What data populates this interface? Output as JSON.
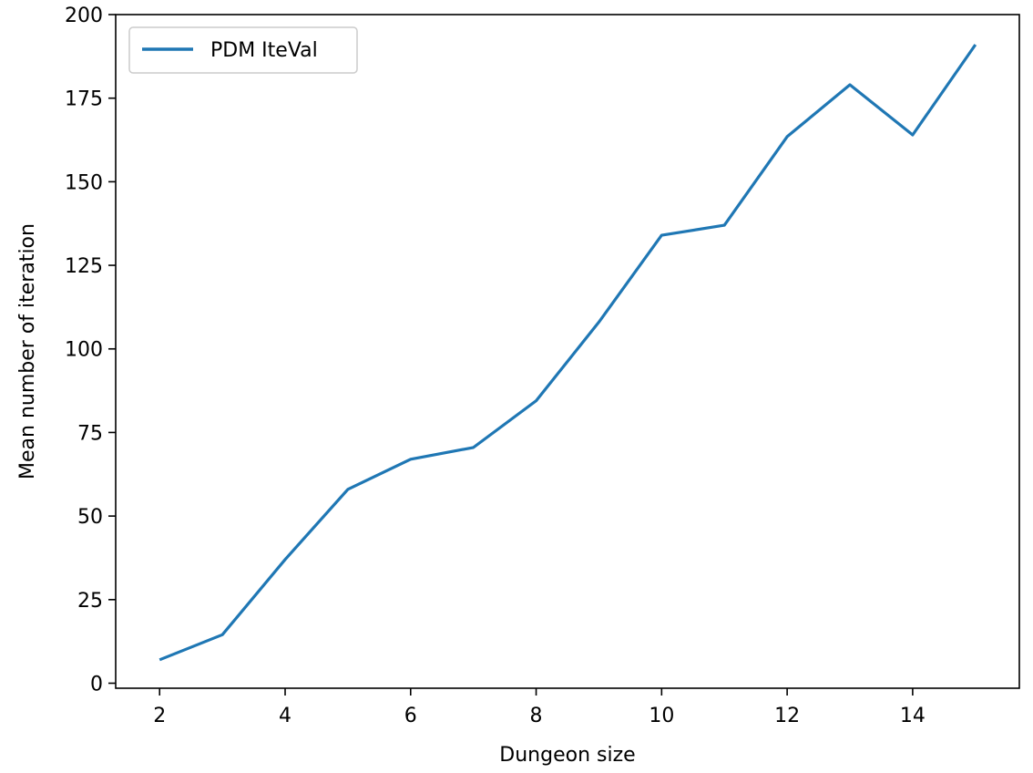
{
  "chart_data": {
    "type": "line",
    "title": "",
    "xlabel": "Dungeon size",
    "ylabel": "Mean number of iteration",
    "xlim": [
      1.3,
      15.7
    ],
    "ylim": [
      -1.5,
      200
    ],
    "x_ticks": [
      2,
      4,
      6,
      8,
      10,
      12,
      14
    ],
    "y_ticks": [
      0,
      25,
      50,
      75,
      100,
      125,
      150,
      175,
      200
    ],
    "grid": false,
    "legend": {
      "placement": "top-left",
      "entries": [
        "PDM IteVal"
      ]
    },
    "series": [
      {
        "name": "PDM IteVal",
        "color": "#1f77b4",
        "x": [
          2,
          3,
          4,
          5,
          6,
          7,
          8,
          9,
          10,
          11,
          12,
          13,
          14,
          15
        ],
        "y": [
          7,
          14.5,
          37,
          58,
          67,
          70.5,
          84.5,
          108,
          134,
          137,
          163.5,
          179,
          164,
          191
        ]
      }
    ]
  }
}
